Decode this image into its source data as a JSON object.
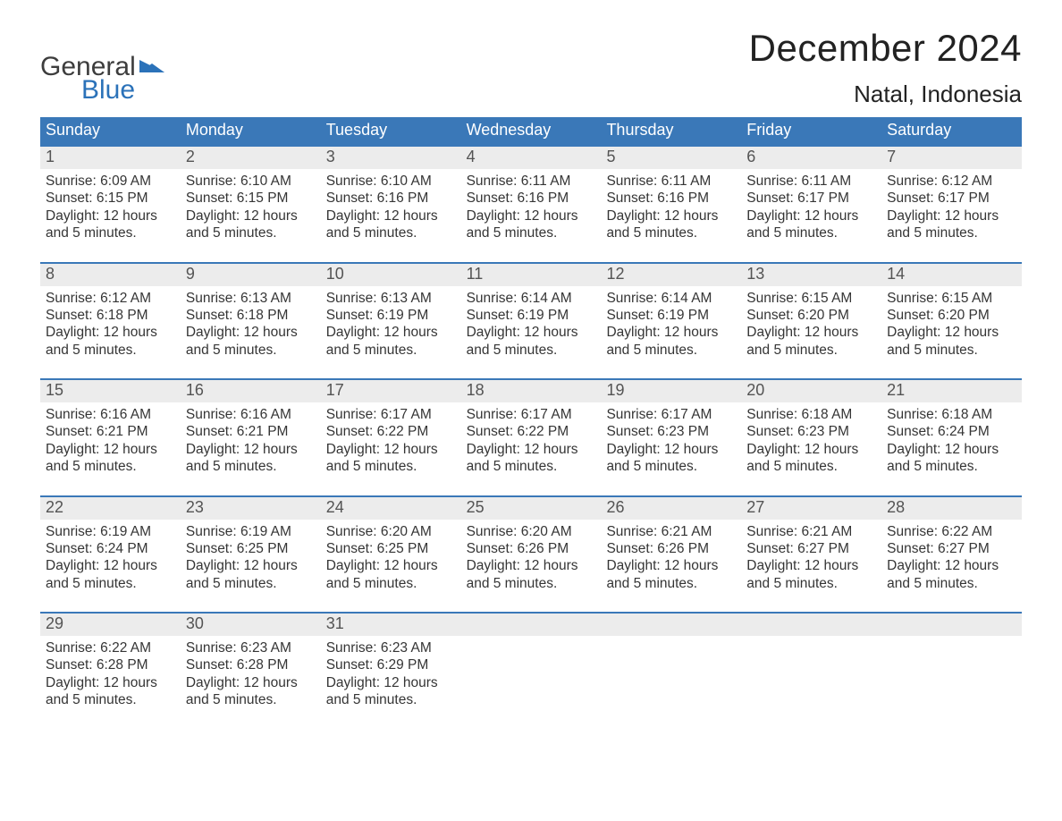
{
  "brand": {
    "word1": "General",
    "word2": "Blue",
    "accent_color": "#2b72b9"
  },
  "title": "December 2024",
  "location": "Natal, Indonesia",
  "colors": {
    "header_bg": "#3a78b8",
    "header_text": "#ffffff",
    "daynum_bg": "#ececec",
    "week_border": "#3a78b8",
    "body_text": "#353535"
  },
  "day_headers": [
    "Sunday",
    "Monday",
    "Tuesday",
    "Wednesday",
    "Thursday",
    "Friday",
    "Saturday"
  ],
  "weeks": [
    [
      {
        "n": 1,
        "sunrise": "6:09 AM",
        "sunset": "6:15 PM",
        "daylight": "12 hours and 5 minutes."
      },
      {
        "n": 2,
        "sunrise": "6:10 AM",
        "sunset": "6:15 PM",
        "daylight": "12 hours and 5 minutes."
      },
      {
        "n": 3,
        "sunrise": "6:10 AM",
        "sunset": "6:16 PM",
        "daylight": "12 hours and 5 minutes."
      },
      {
        "n": 4,
        "sunrise": "6:11 AM",
        "sunset": "6:16 PM",
        "daylight": "12 hours and 5 minutes."
      },
      {
        "n": 5,
        "sunrise": "6:11 AM",
        "sunset": "6:16 PM",
        "daylight": "12 hours and 5 minutes."
      },
      {
        "n": 6,
        "sunrise": "6:11 AM",
        "sunset": "6:17 PM",
        "daylight": "12 hours and 5 minutes."
      },
      {
        "n": 7,
        "sunrise": "6:12 AM",
        "sunset": "6:17 PM",
        "daylight": "12 hours and 5 minutes."
      }
    ],
    [
      {
        "n": 8,
        "sunrise": "6:12 AM",
        "sunset": "6:18 PM",
        "daylight": "12 hours and 5 minutes."
      },
      {
        "n": 9,
        "sunrise": "6:13 AM",
        "sunset": "6:18 PM",
        "daylight": "12 hours and 5 minutes."
      },
      {
        "n": 10,
        "sunrise": "6:13 AM",
        "sunset": "6:19 PM",
        "daylight": "12 hours and 5 minutes."
      },
      {
        "n": 11,
        "sunrise": "6:14 AM",
        "sunset": "6:19 PM",
        "daylight": "12 hours and 5 minutes."
      },
      {
        "n": 12,
        "sunrise": "6:14 AM",
        "sunset": "6:19 PM",
        "daylight": "12 hours and 5 minutes."
      },
      {
        "n": 13,
        "sunrise": "6:15 AM",
        "sunset": "6:20 PM",
        "daylight": "12 hours and 5 minutes."
      },
      {
        "n": 14,
        "sunrise": "6:15 AM",
        "sunset": "6:20 PM",
        "daylight": "12 hours and 5 minutes."
      }
    ],
    [
      {
        "n": 15,
        "sunrise": "6:16 AM",
        "sunset": "6:21 PM",
        "daylight": "12 hours and 5 minutes."
      },
      {
        "n": 16,
        "sunrise": "6:16 AM",
        "sunset": "6:21 PM",
        "daylight": "12 hours and 5 minutes."
      },
      {
        "n": 17,
        "sunrise": "6:17 AM",
        "sunset": "6:22 PM",
        "daylight": "12 hours and 5 minutes."
      },
      {
        "n": 18,
        "sunrise": "6:17 AM",
        "sunset": "6:22 PM",
        "daylight": "12 hours and 5 minutes."
      },
      {
        "n": 19,
        "sunrise": "6:17 AM",
        "sunset": "6:23 PM",
        "daylight": "12 hours and 5 minutes."
      },
      {
        "n": 20,
        "sunrise": "6:18 AM",
        "sunset": "6:23 PM",
        "daylight": "12 hours and 5 minutes."
      },
      {
        "n": 21,
        "sunrise": "6:18 AM",
        "sunset": "6:24 PM",
        "daylight": "12 hours and 5 minutes."
      }
    ],
    [
      {
        "n": 22,
        "sunrise": "6:19 AM",
        "sunset": "6:24 PM",
        "daylight": "12 hours and 5 minutes."
      },
      {
        "n": 23,
        "sunrise": "6:19 AM",
        "sunset": "6:25 PM",
        "daylight": "12 hours and 5 minutes."
      },
      {
        "n": 24,
        "sunrise": "6:20 AM",
        "sunset": "6:25 PM",
        "daylight": "12 hours and 5 minutes."
      },
      {
        "n": 25,
        "sunrise": "6:20 AM",
        "sunset": "6:26 PM",
        "daylight": "12 hours and 5 minutes."
      },
      {
        "n": 26,
        "sunrise": "6:21 AM",
        "sunset": "6:26 PM",
        "daylight": "12 hours and 5 minutes."
      },
      {
        "n": 27,
        "sunrise": "6:21 AM",
        "sunset": "6:27 PM",
        "daylight": "12 hours and 5 minutes."
      },
      {
        "n": 28,
        "sunrise": "6:22 AM",
        "sunset": "6:27 PM",
        "daylight": "12 hours and 5 minutes."
      }
    ],
    [
      {
        "n": 29,
        "sunrise": "6:22 AM",
        "sunset": "6:28 PM",
        "daylight": "12 hours and 5 minutes."
      },
      {
        "n": 30,
        "sunrise": "6:23 AM",
        "sunset": "6:28 PM",
        "daylight": "12 hours and 5 minutes."
      },
      {
        "n": 31,
        "sunrise": "6:23 AM",
        "sunset": "6:29 PM",
        "daylight": "12 hours and 5 minutes."
      },
      null,
      null,
      null,
      null
    ]
  ],
  "labels": {
    "sunrise": "Sunrise:",
    "sunset": "Sunset:",
    "daylight": "Daylight:"
  }
}
